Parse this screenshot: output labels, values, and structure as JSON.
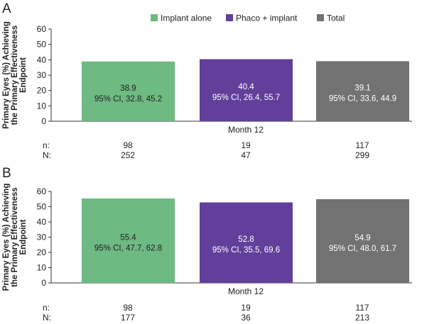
{
  "legend": [
    {
      "label": "Implant alone",
      "color": "#6dba82"
    },
    {
      "label": "Phaco + implant",
      "color": "#623f9b"
    },
    {
      "label": "Total",
      "color": "#727272"
    }
  ],
  "ylabel_lines": [
    "Primary Eyes (%) Achieving",
    "the Primary Effectiveness",
    "Endpoint"
  ],
  "chart_data": [
    {
      "panel_label": "A",
      "type": "bar",
      "xlabel": "Month 12",
      "ylim": [
        0,
        60
      ],
      "yticks": [
        0,
        10,
        20,
        30,
        40,
        50,
        60
      ],
      "categories": [
        "Implant alone",
        "Phaco + implant",
        "Total"
      ],
      "values": [
        38.9,
        40.4,
        39.1
      ],
      "value_labels": [
        "38.9",
        "40.4",
        "39.1"
      ],
      "ci_labels": [
        "95% CI, 32.8, 45.2",
        "95% CI, 26.4, 55.7",
        "95% CI, 33.6, 44.9"
      ],
      "n_label": "n:",
      "n": [
        "98",
        "19",
        "117"
      ],
      "N_label": "N:",
      "N": [
        "252",
        "47",
        "299"
      ]
    },
    {
      "panel_label": "B",
      "type": "bar",
      "xlabel": "Month 12",
      "ylim": [
        0,
        60
      ],
      "yticks": [
        0,
        10,
        20,
        30,
        40,
        50,
        60
      ],
      "categories": [
        "Implant alone",
        "Phaco + implant",
        "Total"
      ],
      "values": [
        55.4,
        52.8,
        54.9
      ],
      "value_labels": [
        "55.4",
        "52.8",
        "54.9"
      ],
      "ci_labels": [
        "95% CI, 47.7, 62.8",
        "95% CI, 35.5, 69.6",
        "95% CI, 48.0, 61.7"
      ],
      "n_label": "n:",
      "n": [
        "98",
        "19",
        "117"
      ],
      "N_label": "N:",
      "N": [
        "177",
        "36",
        "213"
      ]
    }
  ]
}
